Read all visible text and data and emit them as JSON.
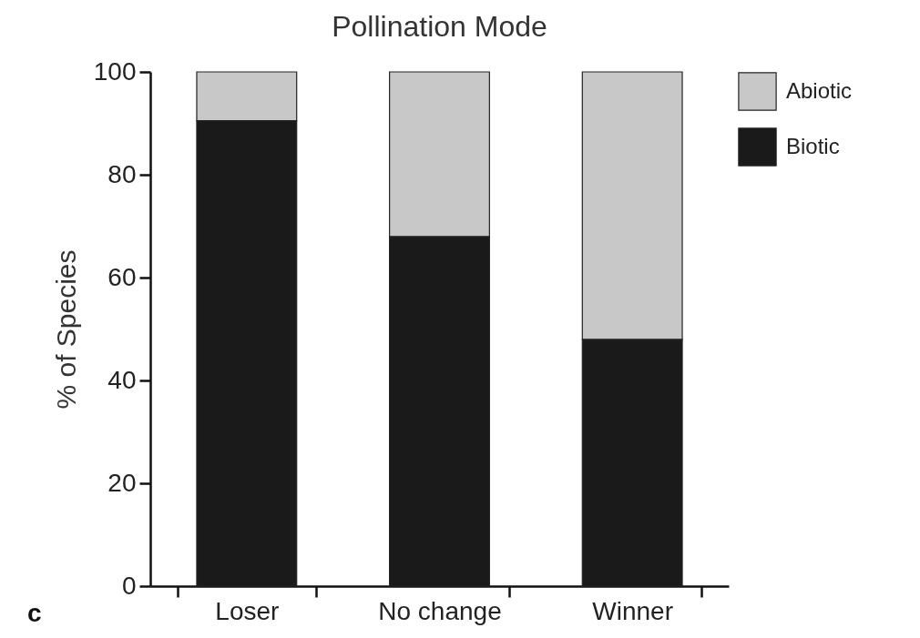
{
  "chart_data": {
    "type": "bar",
    "title": "Pollination Mode",
    "ylabel": "% of Species",
    "categories": [
      "Loser",
      "No change",
      "Winner"
    ],
    "stacked": true,
    "series": [
      {
        "name": "Biotic",
        "color": "#1a1a1a",
        "values": [
          90.5,
          68,
          48
        ]
      },
      {
        "name": "Abiotic",
        "color": "#c8c8c8",
        "values": [
          9.5,
          32,
          52
        ]
      }
    ],
    "ylim": [
      0,
      100
    ],
    "yticks": [
      0,
      20,
      40,
      60,
      80,
      100
    ],
    "grid": false,
    "legend": "top right",
    "annotations": [
      "c"
    ]
  }
}
